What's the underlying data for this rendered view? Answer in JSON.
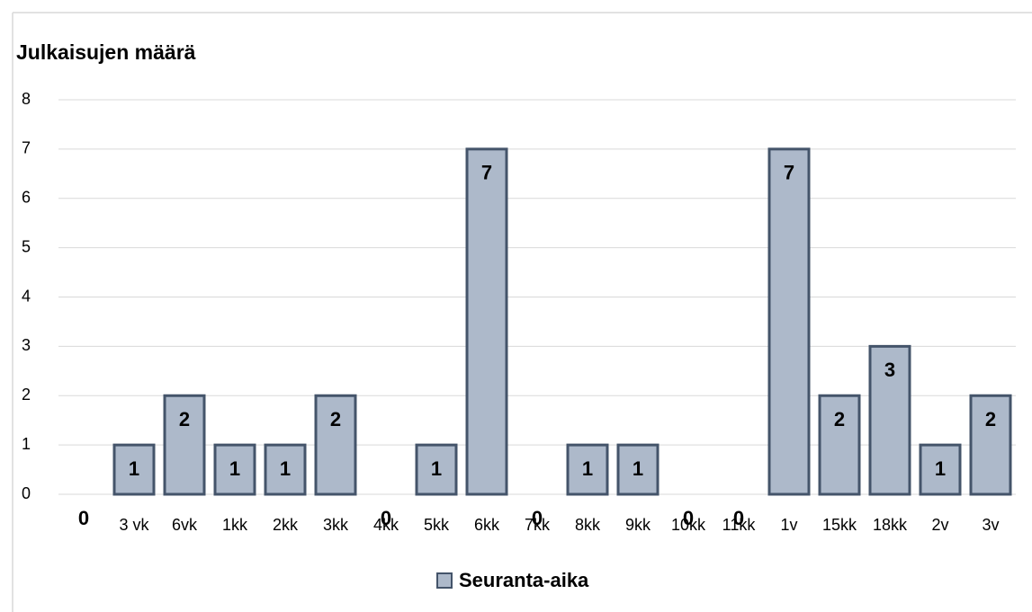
{
  "chart_data": {
    "type": "bar",
    "title": "Julkaisujen määrä",
    "categories": [
      null,
      "3 vk",
      "6vk",
      "1kk",
      "2kk",
      "3kk",
      "4kk",
      "5kk",
      "6kk",
      "7kk",
      "8kk",
      "9kk",
      "10kk",
      "11kk",
      "1v",
      "15kk",
      "18kk",
      "2v",
      "3v"
    ],
    "series": [
      {
        "name": "Seuranta-aika",
        "color": "#adb9ca",
        "values": [
          0,
          1,
          2,
          1,
          1,
          2,
          0,
          1,
          7,
          0,
          1,
          1,
          0,
          0,
          7,
          2,
          3,
          1,
          2
        ]
      }
    ],
    "ylim": [
      0,
      8
    ],
    "yticks": [
      0,
      1,
      2,
      3,
      4,
      5,
      6,
      7,
      8
    ],
    "grid": true,
    "legend": "bottom"
  }
}
